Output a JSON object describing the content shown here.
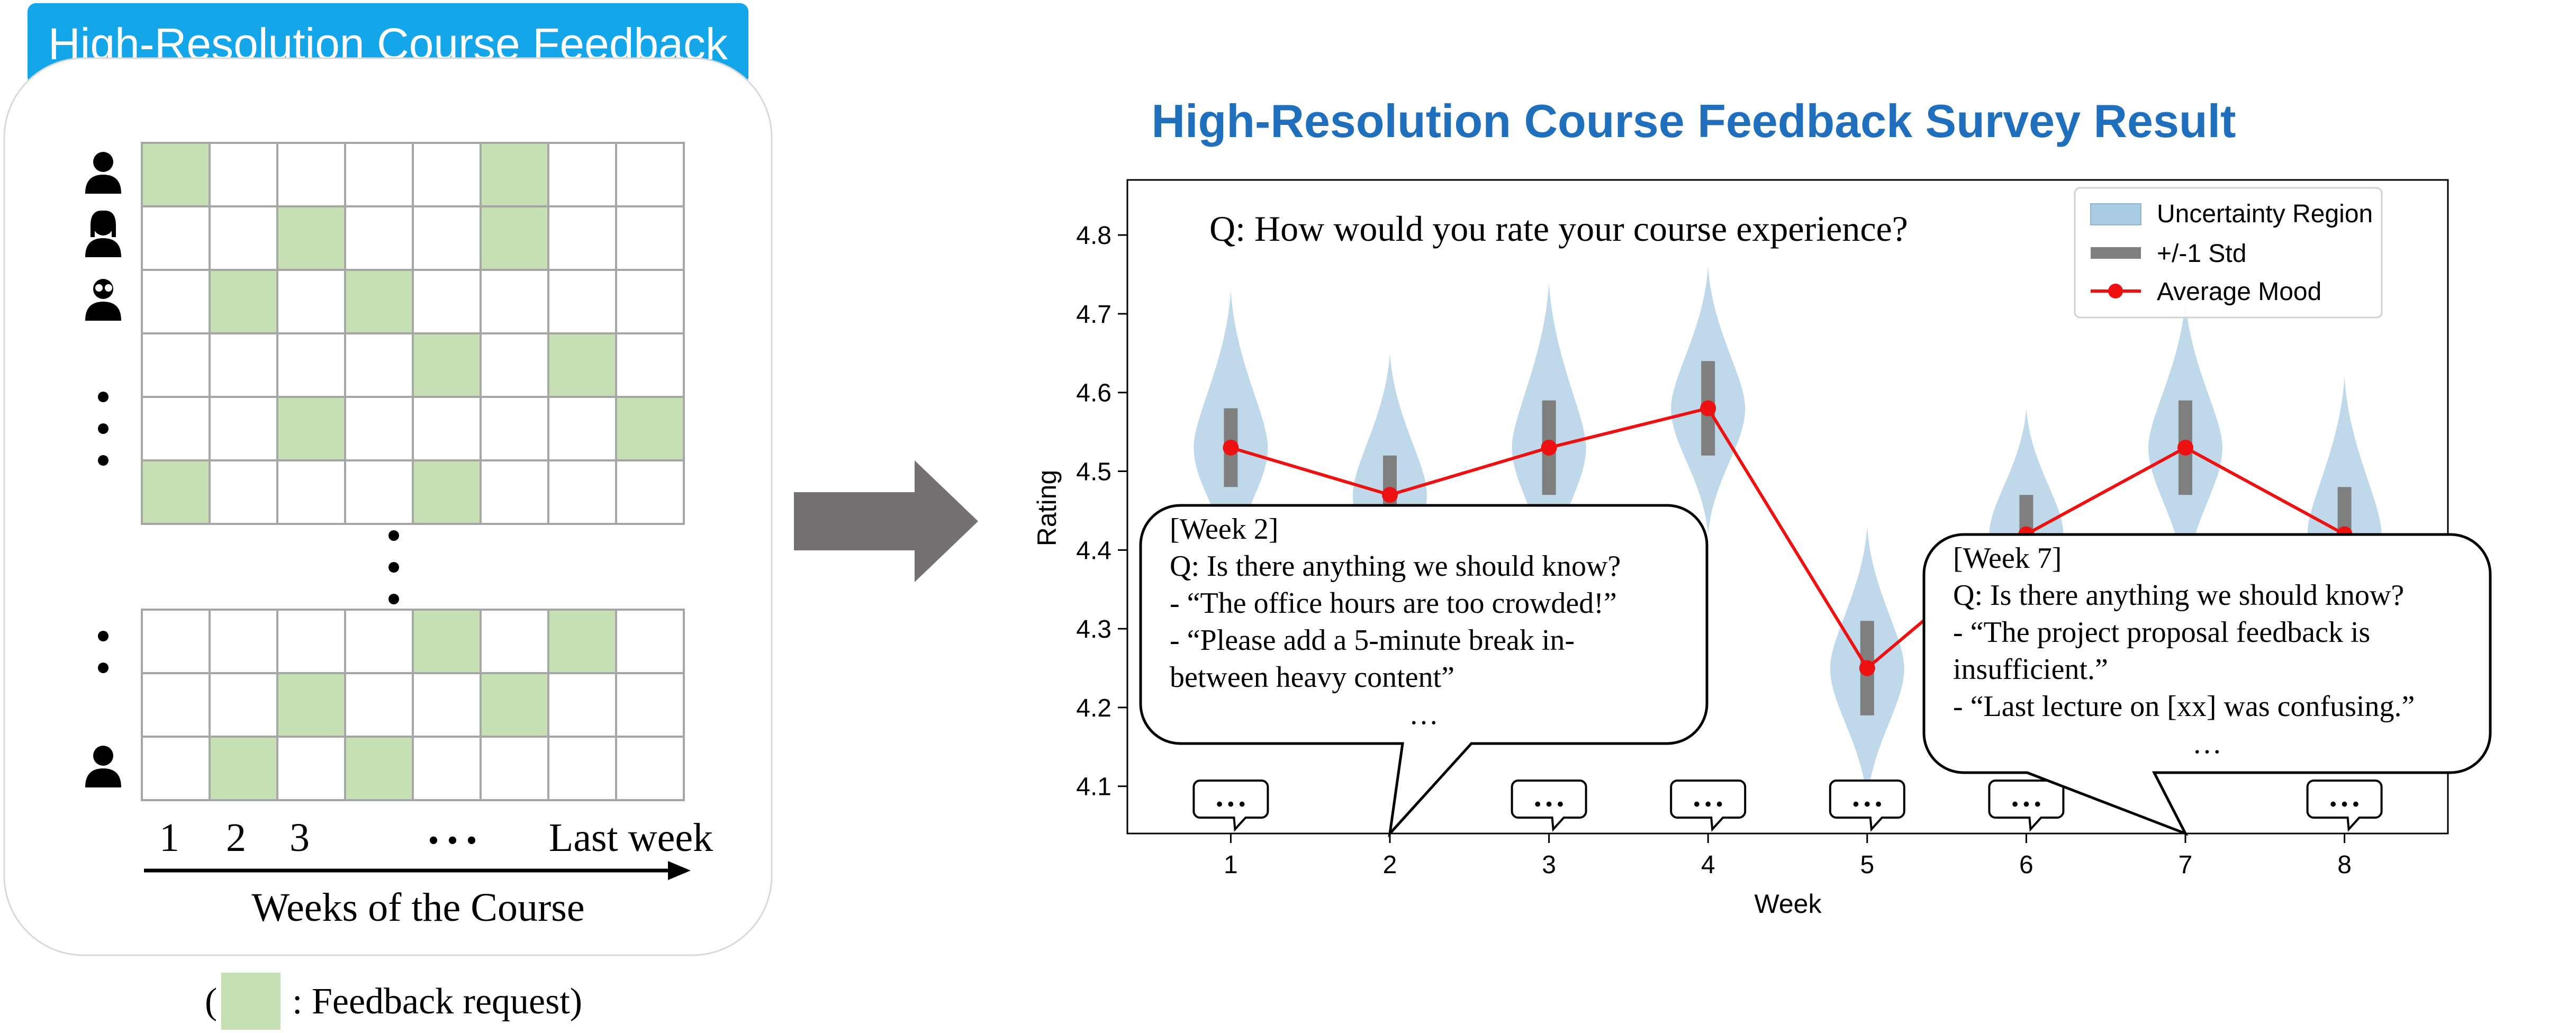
{
  "left_panel": {
    "badge_title": "High-Resolution Course Feedback",
    "week_labels": [
      "1",
      "2",
      "3",
      "• • •",
      "Last week"
    ],
    "axis_title": "Weeks of the Course",
    "legend_open": "(",
    "legend_text": ": Feedback request)",
    "colors": {
      "cell_fill": "#c6e0b4",
      "cell_border": "#a6a6a6",
      "panel_border": "#d9d9d9"
    },
    "grid_top": [
      [
        1,
        0,
        0,
        0,
        0,
        1,
        0,
        0
      ],
      [
        0,
        0,
        1,
        0,
        0,
        1,
        0,
        0
      ],
      [
        0,
        1,
        0,
        1,
        0,
        0,
        0,
        0
      ],
      [
        0,
        0,
        0,
        0,
        1,
        0,
        1,
        0
      ],
      [
        0,
        0,
        1,
        0,
        0,
        0,
        0,
        1
      ],
      [
        1,
        0,
        0,
        0,
        1,
        0,
        0,
        0
      ]
    ],
    "grid_bottom": [
      [
        0,
        0,
        0,
        0,
        1,
        0,
        1,
        0
      ],
      [
        0,
        0,
        1,
        0,
        0,
        1,
        0,
        0
      ],
      [
        0,
        1,
        0,
        1,
        0,
        0,
        0,
        0
      ]
    ],
    "row_icons_top": [
      "user-icon",
      "user-female-icon",
      "user-glasses-icon",
      "dots",
      "dots",
      "dots"
    ],
    "row_icons_bottom": [
      "dots",
      "dots",
      "user-icon"
    ]
  },
  "arrow": {
    "color": "#767171"
  },
  "chart_title": "High-Resolution Course Feedback Survey Result",
  "chart_data": {
    "type": "line",
    "title": "Q: How would you rate your course experience?",
    "xlabel": "Week",
    "ylabel": "Rating",
    "x": [
      1,
      2,
      3,
      4,
      5,
      6,
      7,
      8
    ],
    "xticks": [
      "1",
      "2",
      "3",
      "4",
      "5",
      "6",
      "7",
      "8"
    ],
    "yticks": [
      "4.1",
      "4.2",
      "4.3",
      "4.4",
      "4.5",
      "4.6",
      "4.7",
      "4.8"
    ],
    "ylim": [
      4.04,
      4.87
    ],
    "series": [
      {
        "name": "Average Mood",
        "values": [
          4.53,
          4.47,
          4.53,
          4.58,
          4.25,
          4.42,
          4.53,
          4.42
        ],
        "color": "#ee1111"
      }
    ],
    "std": [
      [
        4.48,
        4.58
      ],
      [
        4.42,
        4.52
      ],
      [
        4.47,
        4.59
      ],
      [
        4.52,
        4.64
      ],
      [
        4.19,
        4.31
      ],
      [
        4.37,
        4.47
      ],
      [
        4.47,
        4.59
      ],
      [
        4.36,
        4.48
      ]
    ],
    "violins": [
      [
        4.37,
        4.73
      ],
      [
        4.3,
        4.65
      ],
      [
        4.36,
        4.74
      ],
      [
        4.42,
        4.76
      ],
      [
        4.08,
        4.43
      ],
      [
        4.26,
        4.58
      ],
      [
        4.36,
        4.72
      ],
      [
        4.26,
        4.62
      ]
    ],
    "legend": [
      "Uncertainty Region",
      "+/-1 Std",
      "Average Mood"
    ],
    "legend_position": "top-right",
    "grid": false,
    "colors": {
      "violin": "#a9cce3",
      "std": "#7f7f7f",
      "line": "#ee1111"
    },
    "comment_weeks": [
      1,
      3,
      4,
      5,
      6,
      8
    ],
    "comment_glyph": "• • •",
    "callouts": [
      {
        "week": 2,
        "lines": [
          "[Week 2]",
          "Q: Is there anything we should know?",
          "- “The office hours are too crowded!”",
          "- “Please add a 5-minute break in-",
          "between heavy content”",
          "…"
        ]
      },
      {
        "week": 7,
        "lines": [
          "[Week 7]",
          "Q: Is there anything we should know?",
          "- “The project proposal feedback is",
          "insufficient.”",
          "- “Last lecture on [xx] was confusing.”",
          "…"
        ]
      }
    ]
  }
}
